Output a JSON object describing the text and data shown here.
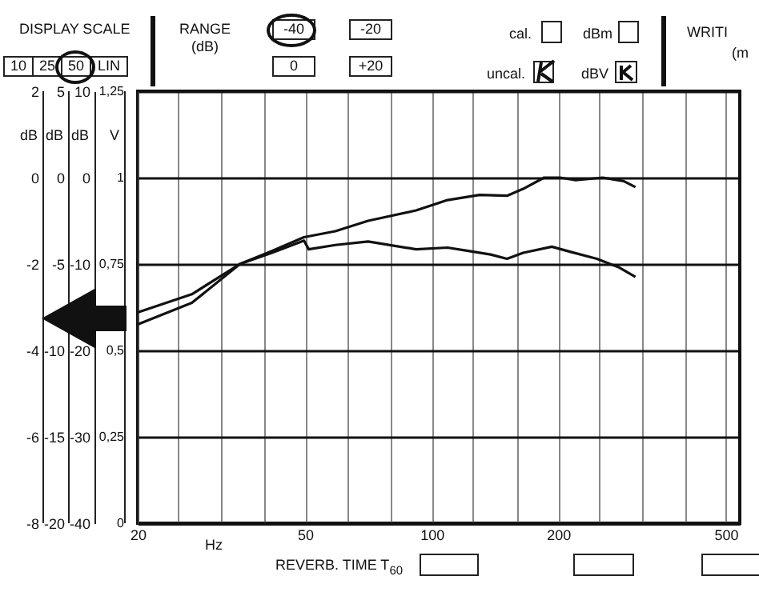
{
  "chart_data": {
    "type": "line",
    "xlabel": "Hz",
    "ylabel": "dB",
    "y2label": "V",
    "y3label": "dB",
    "log": "x",
    "xlim": [
      20,
      540
    ],
    "xticks": [
      20,
      {
        "value": 25,
        "label": null
      },
      {
        "value": 31.5,
        "label": null
      },
      {
        "value": 40,
        "label": null
      },
      50,
      {
        "value": 63,
        "label": null
      },
      {
        "value": 80,
        "label": null
      },
      100,
      {
        "value": 125,
        "label": null
      },
      {
        "value": 160,
        "label": null
      },
      200,
      {
        "value": 250,
        "label": null
      },
      {
        "value": 315,
        "label": null
      },
      {
        "value": 400,
        "label": null
      },
      500
    ],
    "ylim": [
      -40,
      10
    ],
    "yticks": [
      -40,
      -30,
      -20,
      -10,
      0,
      10
    ],
    "y3lim": [
      -20,
      5
    ],
    "y3ticks": [
      -20,
      -15,
      -10,
      -5,
      0,
      5
    ],
    "y2lim": [
      0,
      1.25
    ],
    "y2ticks": [
      0,
      {
        "value": 0.25,
        "label": "0,25"
      },
      {
        "value": 0.5,
        "label": "0,5"
      },
      {
        "value": 0.75,
        "label": "0,75"
      },
      1,
      {
        "value": 1.25,
        "label": "1,25"
      }
    ],
    "grid": true,
    "series": [
      {
        "color": "#111111",
        "x": [
          20,
          26.9,
          35,
          41.7,
          49.7,
          59,
          70.6,
          91.8,
          109,
          130,
          151,
          165,
          185,
          202,
          220,
          255,
          286,
          305
        ],
        "values": [
          -15.6,
          -13.5,
          -10,
          -8.5,
          -6.9,
          -6.2,
          -5.0,
          -3.8,
          -2.6,
          -2.0,
          -2.1,
          -1.3,
          0,
          0,
          -0.3,
          0,
          -0.4,
          -1.1
        ]
      },
      {
        "color": "#111111",
        "x": [
          20,
          26.9,
          35,
          41.7,
          49.7,
          51,
          59,
          70.6,
          91.8,
          109,
          123,
          138,
          151,
          165,
          193,
          214,
          247,
          279,
          305
        ],
        "values": [
          -17,
          -14.5,
          -10,
          -8.7,
          -7.3,
          -8.3,
          -7.8,
          -7.4,
          -8.3,
          -8.1,
          -8.5,
          -8.9,
          -9.4,
          -8.7,
          -8.0,
          -8.6,
          -9.4,
          -10.4,
          -11.5
        ]
      }
    ],
    "annotations": [
      "DISPLAY SCALE",
      "10",
      "25",
      "50",
      "LIN",
      "RANGE (dB)",
      "-40",
      "-20",
      "0",
      "+20",
      "cal.",
      "dBm",
      "uncal.",
      "dBV",
      "WRITI",
      "(m",
      "REVERB. TIME T$_{60}$",
      "-8",
      "-6",
      "-4",
      "-2",
      "0",
      "2",
      "dB"
    ]
  }
}
